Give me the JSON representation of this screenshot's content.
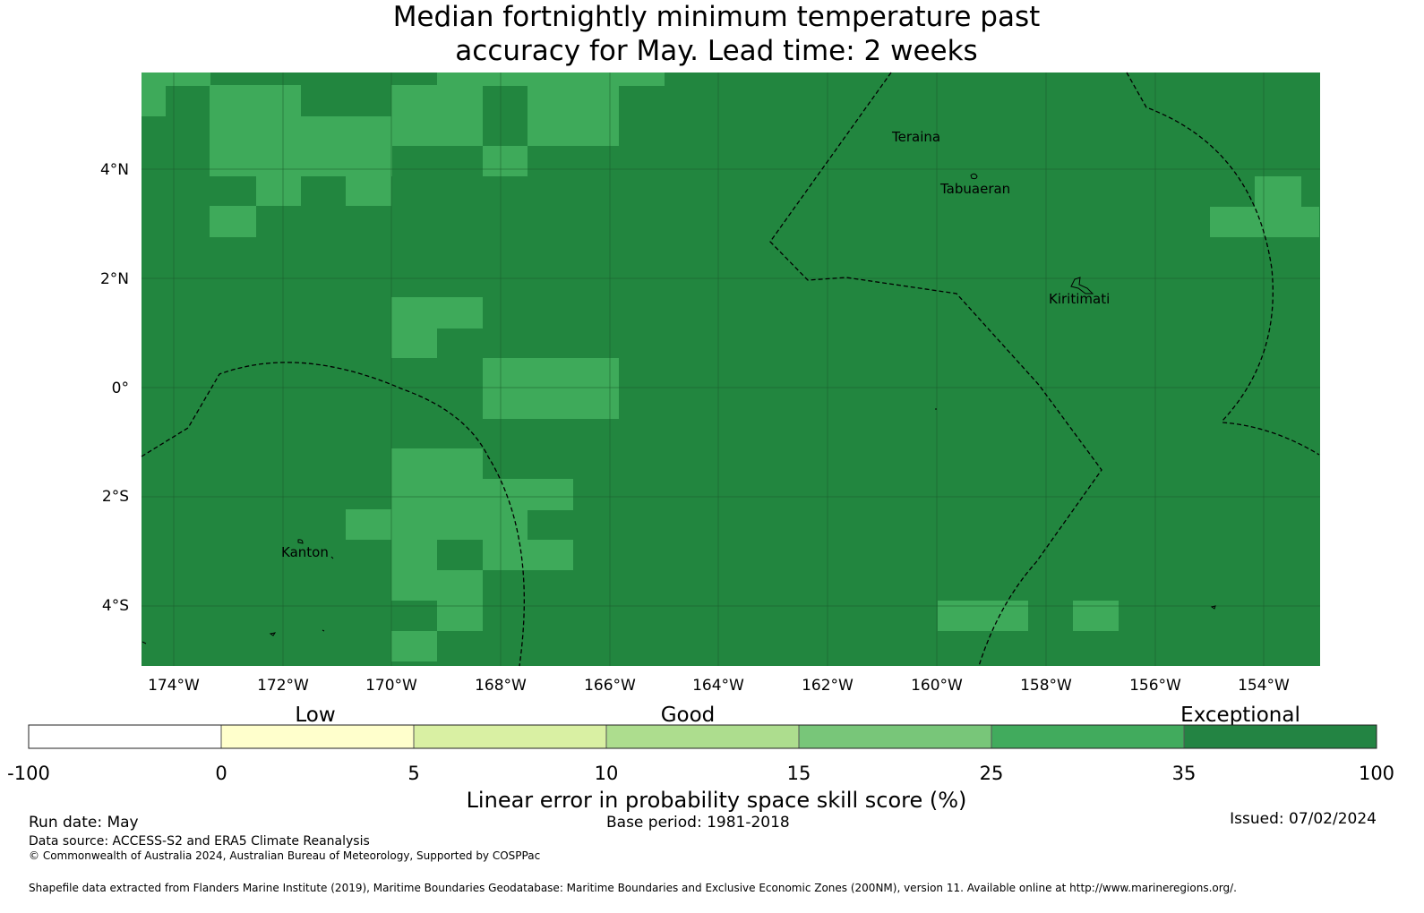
{
  "title_line1": "Median fortnightly minimum temperature past",
  "title_line2": "accuracy for May. Lead time: 2 weeks",
  "map": {
    "lon_range": [
      -174.6,
      -153.0
    ],
    "lat_range": [
      -5.05,
      5.85
    ],
    "lon_ticks": [
      "174°W",
      "172°W",
      "170°W",
      "168°W",
      "166°W",
      "164°W",
      "162°W",
      "160°W",
      "158°W",
      "156°W",
      "154°W"
    ],
    "lat_ticks": [
      "4°N",
      "2°N",
      "0°",
      "2°S",
      "4°S"
    ],
    "places": [
      "Teraina",
      "Tabuaeran",
      "Kiritimati",
      "Kanton"
    ],
    "colors": {
      "skill_25_35": "#3eaa5a",
      "skill_35_100": "#22863f"
    }
  },
  "colorbar": {
    "categories": [
      "Low",
      "Good",
      "Exceptional"
    ],
    "ticks": [
      "-100",
      "0",
      "5",
      "10",
      "15",
      "25",
      "35",
      "100"
    ],
    "colors": [
      "#ffffff",
      "#ffffcc",
      "#d9f0a3",
      "#addd8e",
      "#78c679",
      "#41ab5d",
      "#238443"
    ],
    "label": "Linear error in probability space skill score (%)"
  },
  "footer": {
    "run_date": "Run date: May",
    "base_period": "Base period: 1981-2018",
    "issued": "Issued: 07/02/2024",
    "data_source": "Data source: ACCESS-S2 and ERA5 Climate Reanalysis",
    "copyright": "© Commonwealth of Australia 2024, Australian Bureau of Meteorology, Supported by COSPPac",
    "shapefile": "Shapefile data extracted from Flanders Marine Institute (2019), Maritime Boundaries Geodatabase: Maritime Boundaries and Exclusive Economic Zones (200NM), version 11. Available online at http://www.marineregions.org/."
  }
}
